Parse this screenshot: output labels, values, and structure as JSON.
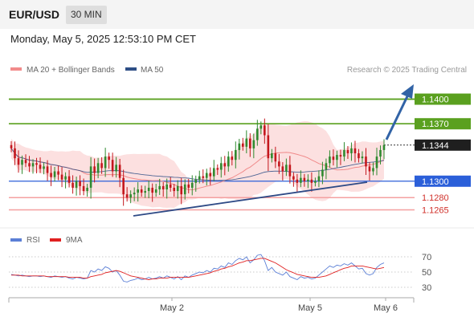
{
  "header": {
    "symbol": "EUR/USD",
    "timeframe": "30 MIN",
    "datetime": "Monday, May 5, 2025 12:53:10 PM CET"
  },
  "legend": {
    "bollinger_label": "MA 20 + Bollinger Bands",
    "ma50_label": "MA 50",
    "credit": "Research © 2025 Trading Central",
    "bollinger_color": "#f28b8b",
    "ma50_color": "#2e4f86"
  },
  "rsi_legend": {
    "rsi_label": "RSI",
    "ma_label": "9MA",
    "rsi_color": "#5b7fd6",
    "ma_color": "#e02020"
  },
  "colors": {
    "bull": "#2f8a2f",
    "bear": "#c4171d",
    "resistance": "#5aa01f",
    "support": "#2b5fd9",
    "support_light": "#f4a0a0",
    "trendline": "#2e4a86",
    "arrow": "#3163a6"
  },
  "chart_data": {
    "type": "candlestick",
    "price_axis": {
      "min": 1.1245,
      "max": 1.1425
    },
    "x_ticks": [
      "May 2",
      "May 5",
      "May 6"
    ],
    "levels": [
      {
        "value": 1.14,
        "label": "1.1400",
        "kind": "resistance-major"
      },
      {
        "value": 1.137,
        "label": "1.1370",
        "kind": "resistance"
      },
      {
        "value": 1.1344,
        "label": "1.1344",
        "kind": "current"
      },
      {
        "value": 1.13,
        "label": "1.1300",
        "kind": "pivot"
      },
      {
        "value": 1.128,
        "label": "1.1280",
        "kind": "support"
      },
      {
        "value": 1.1265,
        "label": "1.1265",
        "kind": "support"
      }
    ],
    "closes": [
      1.134,
      1.1328,
      1.132,
      1.1326,
      1.1322,
      1.1318,
      1.1322,
      1.132,
      1.1315,
      1.1318,
      1.131,
      1.1305,
      1.1312,
      1.1308,
      1.1302,
      1.1306,
      1.1298,
      1.1292,
      1.13,
      1.1294,
      1.1288,
      1.1292,
      1.1318,
      1.131,
      1.1322,
      1.1316,
      1.133,
      1.1326,
      1.1312,
      1.132,
      1.1304,
      1.1284,
      1.128,
      1.1284,
      1.1286,
      1.129,
      1.1286,
      1.1288,
      1.1292,
      1.1286,
      1.129,
      1.1294,
      1.129,
      1.1296,
      1.1292,
      1.1288,
      1.1294,
      1.1284,
      1.1296,
      1.1292,
      1.1298,
      1.1302,
      1.1306,
      1.1304,
      1.131,
      1.1306,
      1.1316,
      1.1314,
      1.1322,
      1.1318,
      1.133,
      1.1326,
      1.1338,
      1.1346,
      1.1342,
      1.1352,
      1.134,
      1.135,
      1.1364,
      1.1368,
      1.1356,
      1.1328,
      1.1334,
      1.1324,
      1.1318,
      1.1312,
      1.132,
      1.1306,
      1.1302,
      1.1298,
      1.1304,
      1.13,
      1.1302,
      1.1298,
      1.13,
      1.1306,
      1.1314,
      1.1322,
      1.133,
      1.1326,
      1.1332,
      1.133,
      1.1338,
      1.1334,
      1.134,
      1.1334,
      1.1328,
      1.133,
      1.1318,
      1.1312,
      1.1316,
      1.133,
      1.1338,
      1.1344
    ],
    "rsi": {
      "levels": [
        70,
        50,
        30
      ],
      "values": [
        47,
        46,
        45,
        46,
        45,
        44,
        45,
        45,
        44,
        45,
        44,
        43,
        45,
        44,
        43,
        44,
        42,
        41,
        43,
        42,
        41,
        42,
        52,
        50,
        54,
        52,
        57,
        55,
        50,
        52,
        46,
        38,
        37,
        39,
        40,
        42,
        40,
        41,
        43,
        41,
        42,
        44,
        42,
        45,
        43,
        41,
        44,
        40,
        45,
        43,
        46,
        48,
        50,
        49,
        52,
        50,
        55,
        54,
        58,
        56,
        62,
        60,
        65,
        68,
        66,
        70,
        62,
        66,
        72,
        73,
        65,
        52,
        56,
        50,
        48,
        46,
        50,
        44,
        42,
        40,
        44,
        42,
        43,
        41,
        42,
        46,
        50,
        54,
        58,
        56,
        59,
        58,
        61,
        59,
        62,
        58,
        54,
        55,
        48,
        46,
        48,
        56,
        60,
        62
      ],
      "ma9": [
        46,
        46,
        46,
        45,
        45,
        45,
        45,
        45,
        45,
        45,
        44,
        44,
        44,
        44,
        44,
        44,
        43,
        43,
        43,
        43,
        42,
        42,
        44,
        45,
        46,
        47,
        49,
        50,
        51,
        52,
        51,
        49,
        47,
        45,
        44,
        43,
        42,
        41,
        40,
        41,
        41,
        42,
        42,
        42,
        43,
        43,
        43,
        43,
        43,
        43,
        44,
        45,
        46,
        47,
        48,
        49,
        51,
        52,
        54,
        55,
        57,
        58,
        60,
        62,
        63,
        65,
        65,
        66,
        67,
        68,
        68,
        66,
        64,
        62,
        59,
        56,
        53,
        51,
        49,
        47,
        46,
        45,
        44,
        43,
        43,
        43,
        44,
        45,
        47,
        49,
        51,
        53,
        55,
        56,
        58,
        58,
        58,
        58,
        57,
        56,
        55,
        54,
        55,
        56
      ]
    }
  }
}
